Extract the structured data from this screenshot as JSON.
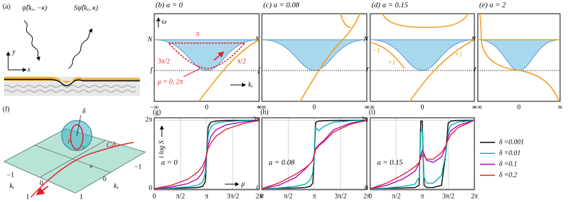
{
  "figure": {
    "panel_a": {
      "label": "(a)",
      "incident": "ψ̂(kₓ, −κ)",
      "scattered": "Sψ̂(kₓ, κ)",
      "y": "y",
      "x": "x"
    },
    "top_panels": [
      {
        "title": "(b) a = 0",
        "y_labels": [
          "N",
          "f"
        ],
        "x_labels": [
          "−∞",
          "0",
          "∞"
        ]
      },
      {
        "title": "(c) a = 0.08",
        "y_labels": [
          "N",
          "f"
        ],
        "x_labels": [
          "−∞",
          "0",
          "∞"
        ]
      },
      {
        "title": "(d) a = 0.15",
        "y_labels": [
          "N",
          "f"
        ],
        "x_labels": [
          "−∞",
          "0",
          "∞"
        ]
      },
      {
        "title": "(e) a = 2",
        "y_labels": [
          "N",
          "f"
        ],
        "x_labels": [
          "−∞",
          "0",
          "∞"
        ]
      }
    ],
    "panel_b_notes": {
      "omega": "ω",
      "kx": "kₓ",
      "top": "π",
      "left": "3π/2",
      "right": "π/2",
      "bottom": "μ = 0, 2π"
    },
    "panel_d_notes": [
      "−1",
      "+1",
      "+1"
    ],
    "panel_f": {
      "label": "(f)",
      "delta": "δ",
      "mu": "μ",
      "contour": "Cδ",
      "ticks": [
        "−1",
        "−1",
        "0",
        "0",
        "1",
        "1"
      ],
      "ky": "kᵧ",
      "kx": "kₓ"
    }
  },
  "chart_data": [
    {
      "type": "line",
      "panel": "(g)",
      "annotation": "a = 0",
      "xlabel": "μ",
      "ylabel": "i log S",
      "x": [
        0,
        1,
        2,
        2.6,
        2.9,
        3.05,
        3.14,
        3.23,
        3.4,
        3.7,
        4.3,
        5.3,
        6.28
      ],
      "xlim": [
        0,
        6.2832
      ],
      "ylim": [
        -0.1,
        6.5
      ],
      "xticks": [
        0,
        {
          "value": 1.5708,
          "label": "π/2"
        },
        {
          "value": 3.1416,
          "label": "π"
        },
        {
          "value": 4.7124,
          "label": "3π/2"
        },
        {
          "value": 6.2832,
          "label": "2π"
        }
      ],
      "yticks": [
        0,
        {
          "value": 6.2832,
          "label": "2π"
        }
      ],
      "grid": true,
      "series": [
        {
          "name": "δ =0.001",
          "color": "#000000",
          "values": [
            0,
            0.02,
            0.05,
            0.1,
            0.2,
            0.6,
            3.14,
            5.7,
            6.1,
            6.2,
            6.25,
            6.27,
            6.28
          ]
        },
        {
          "name": "δ =0.01",
          "color": "#00b0b0",
          "values": [
            0,
            0.05,
            0.15,
            0.3,
            0.6,
            1.4,
            3.14,
            4.9,
            5.7,
            6.0,
            6.15,
            6.24,
            6.28
          ]
        },
        {
          "name": "δ =0.1",
          "color": "#b000c0",
          "values": [
            0,
            0.15,
            0.45,
            0.9,
            1.5,
            2.3,
            3.14,
            4.0,
            4.8,
            5.4,
            5.85,
            6.1,
            6.28
          ]
        },
        {
          "name": "δ =0.2",
          "color": "#e0202a",
          "values": [
            0,
            0.3,
            0.85,
            1.5,
            2.1,
            2.6,
            3.14,
            3.7,
            4.2,
            4.8,
            5.45,
            5.95,
            6.28
          ]
        }
      ]
    },
    {
      "type": "line",
      "panel": "(h)",
      "annotation": "a = 0.08",
      "x": [
        0,
        1,
        2,
        2.6,
        2.9,
        3.05,
        3.14,
        3.23,
        3.4,
        3.7,
        4.3,
        5.3,
        6.28
      ],
      "xlim": [
        0,
        6.2832
      ],
      "ylim": [
        -0.1,
        6.5
      ],
      "xticks": [
        0,
        {
          "value": 1.5708,
          "label": "π/2"
        },
        {
          "value": 3.1416,
          "label": "π"
        },
        {
          "value": 4.7124,
          "label": "3π/2"
        },
        {
          "value": 6.2832,
          "label": "2π"
        }
      ],
      "yticks": [
        0,
        {
          "value": 6.2832,
          "label": "2π"
        }
      ],
      "grid": true,
      "series": [
        {
          "color": "#000000",
          "values": [
            0,
            0.02,
            0.05,
            0.1,
            0.2,
            0.5,
            3.14,
            6.1,
            6.2,
            6.22,
            6.25,
            6.27,
            6.28
          ]
        },
        {
          "color": "#00b0b0",
          "values": [
            0,
            0.05,
            0.2,
            0.4,
            0.8,
            1.5,
            3.14,
            5.6,
            5.3,
            5.7,
            6.1,
            6.22,
            6.28
          ]
        },
        {
          "color": "#b000c0",
          "values": [
            0,
            0.3,
            1.0,
            1.8,
            2.3,
            2.6,
            3.14,
            3.7,
            4.0,
            4.4,
            5.4,
            6.0,
            6.28
          ]
        },
        {
          "color": "#e0202a",
          "values": [
            0,
            0.5,
            1.3,
            1.9,
            2.3,
            2.6,
            3.14,
            3.6,
            3.9,
            4.3,
            5.2,
            5.9,
            6.28
          ]
        }
      ]
    },
    {
      "type": "line",
      "panel": "(i)",
      "annotation": "a = 0.15",
      "x": [
        0,
        1,
        2,
        2.7,
        2.95,
        3.05,
        3.14,
        3.25,
        3.4,
        3.8,
        4.3,
        4.55,
        4.7,
        4.85,
        5.3,
        6.28
      ],
      "xlim": [
        0,
        6.2832
      ],
      "ylim": [
        -0.1,
        6.5
      ],
      "xticks": [
        0,
        {
          "value": 1.5708,
          "label": "π/2"
        },
        {
          "value": 3.1416,
          "label": "π"
        },
        {
          "value": 4.7124,
          "label": "3π/2"
        },
        {
          "value": 6.2832,
          "label": "2π"
        }
      ],
      "yticks": [
        0,
        {
          "value": 6.2832,
          "label": "2π"
        }
      ],
      "grid": true,
      "series": [
        {
          "color": "#000000",
          "values": [
            0,
            0.02,
            0.05,
            0.1,
            0.3,
            6.2,
            6.2,
            0.3,
            0.1,
            0.1,
            0.3,
            3.14,
            6.0,
            6.2,
            6.25,
            6.28
          ]
        },
        {
          "color": "#00b0b0",
          "values": [
            0,
            0.05,
            0.2,
            0.4,
            1.0,
            5.2,
            5.5,
            1.0,
            0.5,
            0.5,
            1.2,
            3.14,
            5.2,
            5.8,
            6.1,
            6.28
          ]
        },
        {
          "color": "#b000c0",
          "values": [
            0,
            0.3,
            0.9,
            1.6,
            2.3,
            3.0,
            3.5,
            3.2,
            2.6,
            2.4,
            2.9,
            3.8,
            4.8,
            5.3,
            5.8,
            6.28
          ]
        },
        {
          "color": "#e0202a",
          "values": [
            0,
            0.5,
            1.3,
            2.0,
            2.4,
            2.8,
            3.1,
            3.0,
            2.7,
            2.7,
            3.3,
            3.9,
            4.5,
            4.9,
            5.6,
            6.28
          ]
        }
      ]
    }
  ]
}
